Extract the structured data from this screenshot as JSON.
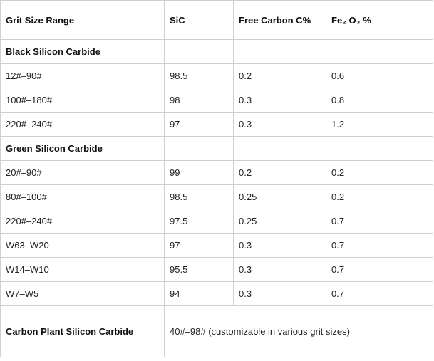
{
  "table": {
    "header": [
      "Grit Size Range",
      "SiC",
      "Free Carbon C%",
      "Fe₂ O₃ %"
    ],
    "rows": [
      [
        "Black Silicon Carbide"
      ],
      [
        "12#–90#",
        "98.5",
        "0.2",
        "0.6"
      ],
      [
        "100#–180#",
        "98",
        "0.3",
        "0.8"
      ],
      [
        "220#–240#",
        "97",
        "0.3",
        "1.2"
      ],
      [
        "Green Silicon Carbide"
      ],
      [
        "20#–90#",
        "99",
        "0.2",
        "0.2"
      ],
      [
        "80#–100#",
        "98.5",
        "0.25",
        "0.2"
      ],
      [
        "220#–240#",
        "97.5",
        "0.25",
        "0.7"
      ],
      [
        "W63–W20",
        "97",
        "0.3",
        "0.7"
      ],
      [
        "W14–W10",
        "95.5",
        "0.3",
        "0.7"
      ],
      [
        "W7–W5",
        "94",
        "0.3",
        "0.7"
      ],
      [
        "Carbon Plant Silicon Carbide",
        "40#–98# (customizable in various grit sizes)"
      ]
    ]
  }
}
